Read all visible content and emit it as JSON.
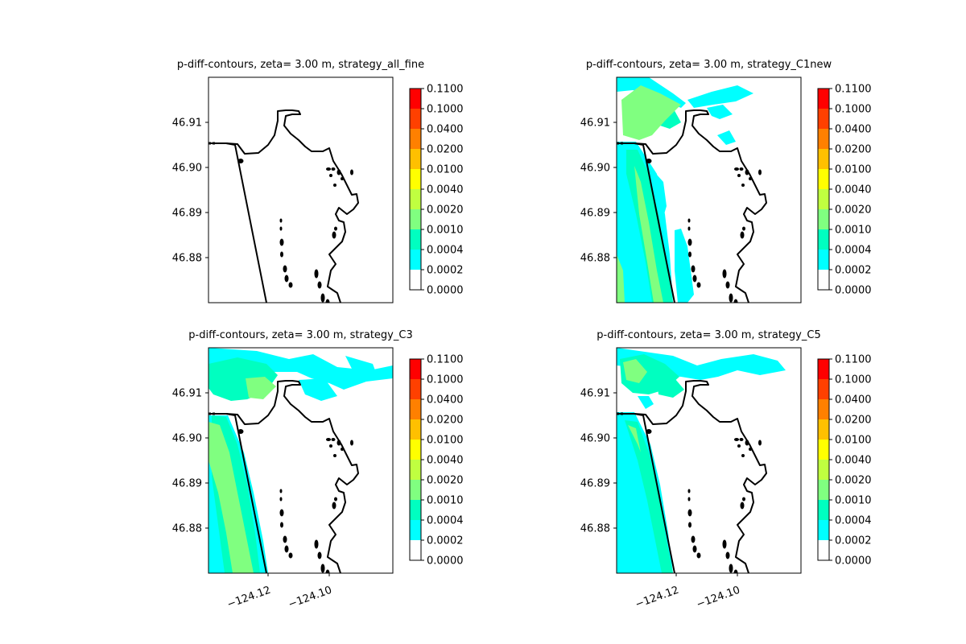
{
  "panels": [
    {
      "title": "p-diff-contours, zeta= 3.00 m, strategy_all_fine",
      "pattern": "none"
    },
    {
      "title": "p-diff-contours, zeta= 3.00 m, strategy_C1new",
      "pattern": "c1new"
    },
    {
      "title": "p-diff-contours, zeta= 3.00 m, strategy_C3",
      "pattern": "c3"
    },
    {
      "title": "p-diff-contours, zeta= 3.00 m, strategy_C5",
      "pattern": "c5"
    }
  ],
  "chart_data": {
    "type": "contour",
    "y_ticks": [
      "46.91",
      "46.90",
      "46.89",
      "46.88"
    ],
    "x_ticks": [
      "−124.12",
      "−124.10"
    ],
    "colorbar": {
      "labels": [
        "0.0000",
        "0.0002",
        "0.0004",
        "0.0010",
        "0.0020",
        "0.0040",
        "0.0100",
        "0.0200",
        "0.0400",
        "0.1000",
        "0.1100"
      ],
      "colors": [
        "#ffffff",
        "#00ffff",
        "#00ffc0",
        "#80ff80",
        "#c0ff40",
        "#ffff00",
        "#ffc000",
        "#ff8000",
        "#ff4000",
        "#ff0000"
      ]
    }
  }
}
